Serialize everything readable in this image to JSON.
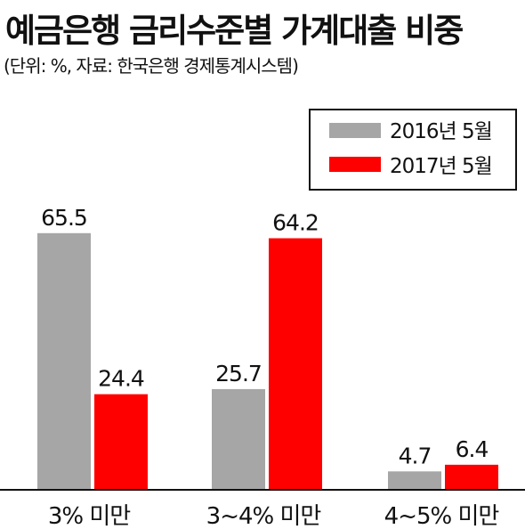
{
  "title": "예금은행 금리수준별 가계대출 비중",
  "subtitle": "(단위: %, 자료: 한국은행 경제통계시스템)",
  "colors": {
    "series_2016": "#a6a6a6",
    "series_2017": "#ff0000",
    "axis": "#111111",
    "legend_border": "#111111"
  },
  "chart_data": {
    "type": "bar",
    "categories": [
      "3% 미만",
      "3~4% 미만",
      "4~5% 미만"
    ],
    "series": [
      {
        "name": "2016년 5월",
        "values": [
          65.5,
          25.7,
          4.7
        ]
      },
      {
        "name": "2017년 5월",
        "values": [
          24.4,
          64.2,
          6.4
        ]
      }
    ],
    "ylim": [
      0,
      70
    ],
    "grid": false,
    "legend_position": "top-right",
    "data_labels": true
  }
}
